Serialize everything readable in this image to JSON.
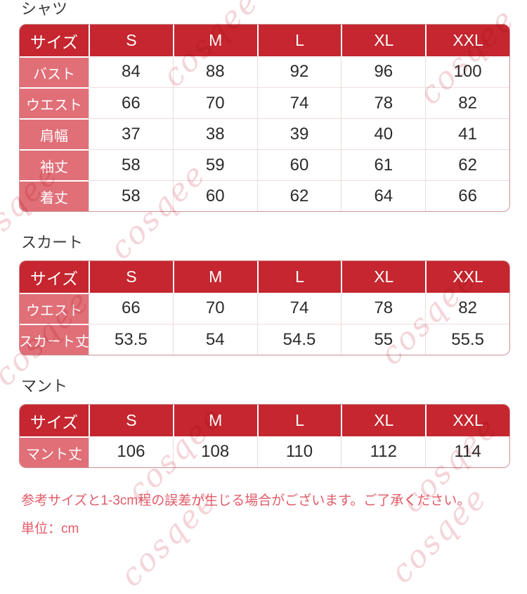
{
  "colors": {
    "header_bg": "#c5262f",
    "label_bg": "#e06f78",
    "table_border": "#cc8e93",
    "cell_border": "#eedbdc",
    "value_text": "#2b2b2b",
    "title_text": "#3a3a3a",
    "note_text": "#e25b69",
    "watermark": "#f3ced3"
  },
  "sections": [
    {
      "title": "シャツ",
      "header": [
        "サイズ",
        "S",
        "M",
        "L",
        "XL",
        "XXL"
      ],
      "rows": [
        [
          "バスト",
          "84",
          "88",
          "92",
          "96",
          "100"
        ],
        [
          "ウエスト",
          "66",
          "70",
          "74",
          "78",
          "82"
        ],
        [
          "肩幅",
          "37",
          "38",
          "39",
          "40",
          "41"
        ],
        [
          "袖丈",
          "58",
          "59",
          "60",
          "61",
          "62"
        ],
        [
          "着丈",
          "58",
          "60",
          "62",
          "64",
          "66"
        ]
      ]
    },
    {
      "title": "スカート",
      "header": [
        "サイズ",
        "S",
        "M",
        "L",
        "XL",
        "XXL"
      ],
      "rows": [
        [
          "ウエスト",
          "66",
          "70",
          "74",
          "78",
          "82"
        ],
        [
          "スカート丈",
          "53.5",
          "54",
          "54.5",
          "55",
          "55.5"
        ]
      ]
    },
    {
      "title": "マント",
      "header": [
        "サイズ",
        "S",
        "M",
        "L",
        "XL",
        "XXL"
      ],
      "rows": [
        [
          "マント丈",
          "106",
          "108",
          "110",
          "112",
          "114"
        ]
      ]
    }
  ],
  "footer": {
    "note": "参考サイズと1-3cm程の誤差が生じる場合がございます。ご了承ください。",
    "unit": "単位：cm"
  },
  "watermark": {
    "text": "cosqee"
  }
}
